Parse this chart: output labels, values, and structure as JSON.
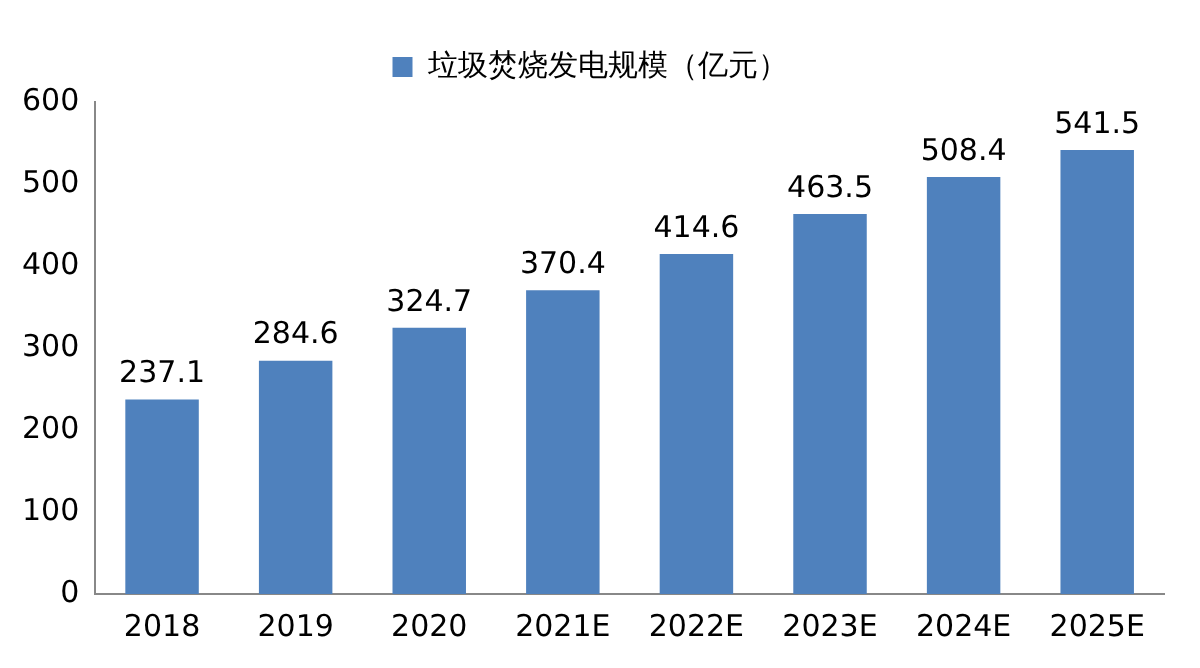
{
  "chart_data": {
    "type": "bar",
    "categories": [
      "2018",
      "2019",
      "2020",
      "2021E",
      "2022E",
      "2023E",
      "2024E",
      "2025E"
    ],
    "series": [
      {
        "name": "垃圾焚烧发电规模（亿元）",
        "color": "#4f81bd",
        "values": [
          237.1,
          284.6,
          324.7,
          370.4,
          414.6,
          463.5,
          508.4,
          541.5
        ]
      }
    ],
    "ylim": [
      0,
      600
    ],
    "yticks": [
      0,
      100,
      200,
      300,
      400,
      500,
      600
    ],
    "grid": false,
    "legend": "top",
    "data_labels": true
  }
}
